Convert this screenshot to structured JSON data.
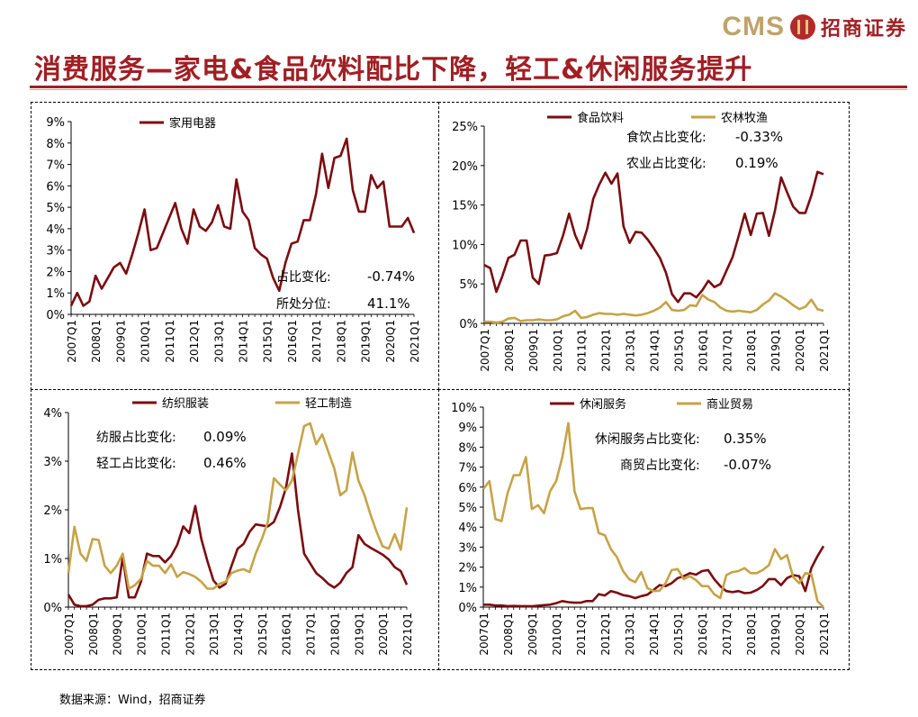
{
  "header": {
    "logo_cms": "CMS",
    "logo_cn": "招商证券",
    "title": "消费服务—家电&食品饮料配比下降，轻工&休闲服务提升"
  },
  "footer": {
    "source": "数据来源：Wind，招商证券"
  },
  "colors": {
    "dark": "#7b0c10",
    "gold": "#c6a346",
    "title": "#a01f24"
  },
  "chart_data": [
    {
      "type": "line",
      "title": "家用电器",
      "x_tick_labels": [
        "2007Q1",
        "2008Q1",
        "2009Q1",
        "2010Q1",
        "2011Q1",
        "2012Q1",
        "2013Q1",
        "2014Q1",
        "2015Q1",
        "2016Q1",
        "2017Q1",
        "2018Q1",
        "2019Q1",
        "2020Q1",
        "2021Q1"
      ],
      "y_tick_labels": [
        "0%",
        "1%",
        "2%",
        "3%",
        "4%",
        "5%",
        "6%",
        "7%",
        "8%",
        "9%"
      ],
      "ylim": [
        0,
        9
      ],
      "series": [
        {
          "name": "家用电器",
          "color": "dark",
          "values": [
            0.4,
            1.0,
            0.4,
            0.6,
            1.8,
            1.2,
            1.7,
            2.2,
            2.4,
            1.9,
            2.8,
            3.8,
            4.9,
            3.0,
            3.1,
            3.8,
            4.5,
            5.2,
            4.0,
            3.3,
            4.9,
            4.1,
            3.9,
            4.3,
            5.1,
            4.1,
            4.0,
            6.3,
            4.8,
            4.4,
            3.1,
            2.8,
            2.6,
            1.7,
            1.1,
            2.4,
            3.3,
            3.4,
            4.4,
            4.4,
            5.6,
            7.5,
            5.9,
            7.3,
            7.4,
            8.2,
            5.8,
            4.8,
            4.8,
            6.5,
            5.9,
            6.2,
            4.1,
            4.1,
            4.1,
            4.5,
            3.8
          ]
        }
      ],
      "annotations": [
        {
          "label": "占比变化:",
          "value": "-0.74%"
        },
        {
          "label": "所处分位:",
          "value": "41.1%"
        }
      ]
    },
    {
      "type": "line",
      "title": "食品饮料 / 农林牧渔",
      "x_tick_labels": [
        "2007Q1",
        "2008Q1",
        "2009Q1",
        "2010Q1",
        "2011Q1",
        "2012Q1",
        "2013Q1",
        "2014Q1",
        "2015Q1",
        "2016Q1",
        "2017Q1",
        "2018Q1",
        "2019Q1",
        "2020Q1",
        "2021Q1"
      ],
      "y_tick_labels": [
        "0%",
        "5%",
        "10%",
        "15%",
        "20%",
        "25%"
      ],
      "ylim": [
        0,
        25
      ],
      "series": [
        {
          "name": "食品饮料",
          "color": "dark",
          "values": [
            7.4,
            7.0,
            4.0,
            6.0,
            8.3,
            8.7,
            10.5,
            10.5,
            5.8,
            5.0,
            8.6,
            8.7,
            8.9,
            11.1,
            13.9,
            11.2,
            9.5,
            12.0,
            15.8,
            17.6,
            19.1,
            17.7,
            19.0,
            12.3,
            10.2,
            11.6,
            11.5,
            10.6,
            9.5,
            8.3,
            6.4,
            3.7,
            2.7,
            3.8,
            3.8,
            3.3,
            4.2,
            5.4,
            4.6,
            5.0,
            6.7,
            8.4,
            11.1,
            13.9,
            11.2,
            13.9,
            14.0,
            11.1,
            14.3,
            18.5,
            16.6,
            14.8,
            14.0,
            14.0,
            16.2,
            19.2,
            18.9
          ]
        },
        {
          "name": "农林牧渔",
          "color": "gold",
          "values": [
            0.2,
            0.2,
            0.1,
            0.2,
            0.6,
            0.7,
            0.3,
            0.4,
            0.4,
            0.5,
            0.4,
            0.4,
            0.5,
            0.9,
            1.1,
            1.6,
            0.7,
            0.8,
            1.1,
            1.3,
            1.2,
            1.2,
            1.1,
            1.2,
            1.1,
            1.0,
            1.1,
            1.3,
            1.6,
            2.0,
            2.7,
            1.7,
            1.6,
            1.7,
            2.3,
            2.2,
            3.6,
            3.0,
            2.7,
            2.0,
            1.6,
            1.5,
            1.6,
            1.5,
            1.4,
            1.7,
            2.4,
            2.9,
            3.8,
            3.4,
            2.9,
            2.3,
            1.8,
            2.1,
            3.0,
            1.8,
            1.6
          ]
        }
      ],
      "annotations": [
        {
          "label": "食饮占比变化:",
          "value": "-0.33%"
        },
        {
          "label": "农业占比变化:",
          "value": "0.19%"
        }
      ]
    },
    {
      "type": "line",
      "title": "纺织服装 / 轻工制造",
      "x_tick_labels": [
        "2007Q1",
        "2008Q1",
        "2009Q1",
        "2010Q1",
        "2011Q1",
        "2012Q1",
        "2013Q1",
        "2014Q1",
        "2015Q1",
        "2016Q1",
        "2017Q1",
        "2018Q1",
        "2019Q1",
        "2020Q1",
        "2021Q1"
      ],
      "y_tick_labels": [
        "0%",
        "1%",
        "2%",
        "3%",
        "4%"
      ],
      "ylim": [
        0,
        4
      ],
      "series": [
        {
          "name": "纺织服装",
          "color": "dark",
          "values": [
            0.26,
            0.05,
            0.02,
            0.02,
            0.05,
            0.15,
            0.18,
            0.18,
            0.2,
            1.02,
            0.2,
            0.2,
            0.52,
            1.1,
            1.05,
            1.05,
            0.92,
            1.05,
            1.28,
            1.66,
            1.52,
            2.08,
            1.4,
            0.95,
            0.55,
            0.4,
            0.48,
            0.85,
            1.2,
            1.3,
            1.55,
            1.7,
            1.68,
            1.66,
            1.75,
            2.05,
            2.45,
            3.16,
            2.0,
            1.1,
            0.9,
            0.7,
            0.6,
            0.48,
            0.4,
            0.5,
            0.7,
            0.82,
            1.48,
            1.3,
            1.22,
            1.15,
            1.08,
            0.98,
            0.82,
            0.74,
            0.46
          ]
        },
        {
          "name": "轻工制造",
          "color": "gold",
          "values": [
            0.7,
            1.65,
            1.1,
            0.95,
            1.4,
            1.38,
            0.85,
            0.7,
            0.85,
            1.1,
            0.38,
            0.45,
            0.58,
            0.95,
            0.85,
            0.85,
            0.7,
            0.88,
            0.62,
            0.72,
            0.68,
            0.62,
            0.52,
            0.38,
            0.38,
            0.48,
            0.52,
            0.7,
            0.75,
            0.78,
            0.72,
            1.1,
            1.4,
            1.75,
            2.65,
            2.52,
            2.4,
            2.6,
            3.15,
            3.72,
            3.78,
            3.35,
            3.55,
            3.2,
            2.85,
            2.3,
            2.4,
            3.18,
            2.6,
            2.3,
            1.9,
            1.55,
            1.25,
            1.2,
            1.5,
            1.18,
            2.05
          ]
        }
      ],
      "annotations": [
        {
          "label": "纺服占比变化:",
          "value": "0.09%"
        },
        {
          "label": "轻工占比变化:",
          "value": "0.46%"
        }
      ]
    },
    {
      "type": "line",
      "title": "休闲服务 / 商业贸易",
      "x_tick_labels": [
        "2007Q1",
        "2008Q1",
        "2009Q1",
        "2010Q1",
        "2011Q1",
        "2012Q1",
        "2013Q1",
        "2014Q1",
        "2015Q1",
        "2016Q1",
        "2017Q1",
        "2018Q1",
        "2019Q1",
        "2020Q1",
        "2021Q1"
      ],
      "y_tick_labels": [
        "0%",
        "1%",
        "2%",
        "3%",
        "4%",
        "5%",
        "6%",
        "7%",
        "8%",
        "9%",
        "10%"
      ],
      "ylim": [
        0,
        10
      ],
      "series": [
        {
          "name": "休闲服务",
          "color": "dark",
          "values": [
            0.12,
            0.12,
            0.08,
            0.08,
            0.05,
            0.06,
            0.05,
            0.05,
            0.04,
            0.07,
            0.1,
            0.12,
            0.2,
            0.3,
            0.25,
            0.22,
            0.22,
            0.3,
            0.3,
            0.65,
            0.58,
            0.8,
            0.72,
            0.6,
            0.55,
            0.45,
            0.55,
            0.62,
            0.85,
            1.1,
            1.05,
            1.2,
            1.45,
            1.55,
            1.7,
            1.62,
            1.8,
            1.85,
            1.4,
            1.05,
            0.8,
            0.75,
            0.8,
            0.7,
            0.72,
            0.85,
            1.05,
            1.4,
            1.4,
            1.1,
            1.45,
            1.6,
            1.55,
            0.8,
            1.95,
            2.55,
            3.05
          ]
        },
        {
          "name": "商业贸易",
          "color": "gold",
          "values": [
            5.9,
            6.3,
            4.4,
            4.3,
            5.7,
            6.6,
            6.6,
            7.5,
            4.9,
            5.1,
            4.7,
            5.8,
            6.3,
            7.5,
            9.2,
            5.8,
            4.9,
            4.95,
            4.95,
            3.7,
            3.6,
            2.9,
            2.5,
            1.8,
            1.4,
            1.25,
            1.75,
            0.95,
            0.8,
            0.82,
            1.2,
            1.85,
            1.9,
            1.4,
            1.55,
            1.35,
            1.05,
            1.05,
            0.65,
            0.45,
            1.6,
            1.75,
            1.8,
            1.95,
            1.7,
            1.7,
            1.85,
            2.1,
            2.9,
            2.4,
            2.6,
            1.5,
            1.2,
            1.7,
            1.65,
            0.3,
            0.0
          ]
        }
      ],
      "annotations": [
        {
          "label": "休闲服务占比变化:",
          "value": "0.35%"
        },
        {
          "label": "商贸占比变化:",
          "value": "-0.07%"
        }
      ]
    }
  ]
}
